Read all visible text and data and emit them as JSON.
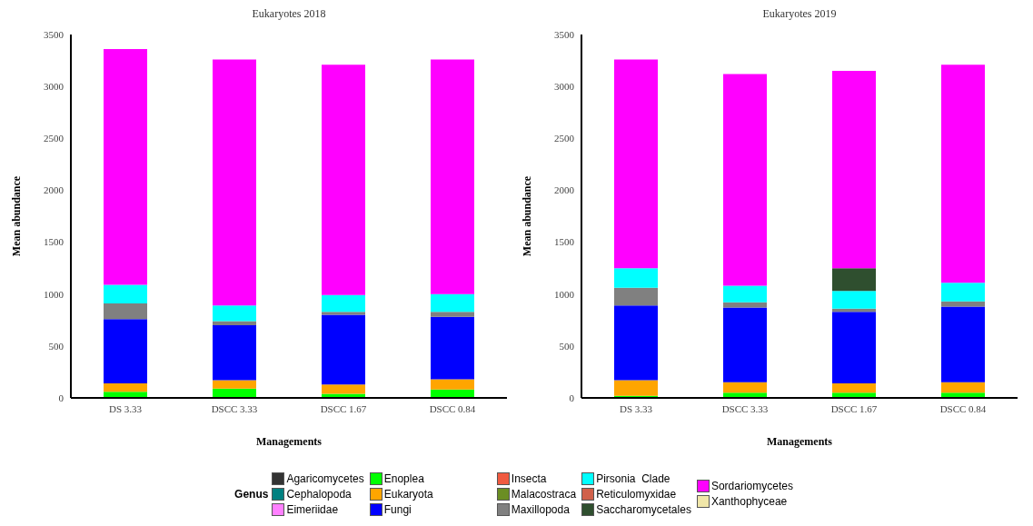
{
  "chart_data": [
    {
      "type": "bar",
      "title": "Eukaryotes 2018",
      "xlabel": "Managements",
      "ylabel": "Mean abundance",
      "categories": [
        "DS 3.33",
        "DSCC 3.33",
        "DSCC 1.67",
        "DSCC 0.84"
      ],
      "stacked": true,
      "ylim": [
        0,
        3500
      ],
      "yticks": [
        0,
        500,
        1000,
        1500,
        2000,
        2500,
        3000,
        3500
      ],
      "series": [
        {
          "color": "#333333",
          "values": [
            0,
            0,
            0,
            0
          ]
        },
        {
          "color": "#008080",
          "values": [
            0,
            0,
            0,
            0
          ]
        },
        {
          "color": "#ff80ff",
          "values": [
            0,
            0,
            0,
            0
          ]
        },
        {
          "color": "#00ff00",
          "values": [
            60,
            90,
            40,
            80
          ]
        },
        {
          "color": "#ffa500",
          "values": [
            80,
            80,
            90,
            100
          ]
        },
        {
          "color": "#0000ff",
          "values": [
            620,
            530,
            670,
            600
          ]
        },
        {
          "color": "#f05a40",
          "values": [
            0,
            0,
            0,
            0
          ]
        },
        {
          "color": "#6b8e23",
          "values": [
            0,
            0,
            0,
            0
          ]
        },
        {
          "color": "#808080",
          "values": [
            150,
            40,
            30,
            50
          ]
        },
        {
          "color": "#00ffff",
          "values": [
            180,
            150,
            160,
            170
          ]
        },
        {
          "color": "#d0604a",
          "values": [
            0,
            0,
            0,
            0
          ]
        },
        {
          "color": "#2f4f2f",
          "values": [
            0,
            0,
            0,
            0
          ]
        },
        {
          "color": "#ff00ff",
          "values": [
            2270,
            2370,
            2220,
            2260
          ]
        },
        {
          "color": "#f0e6a8",
          "values": [
            0,
            0,
            0,
            0
          ]
        }
      ]
    },
    {
      "type": "bar",
      "title": "Eukaryotes 2019",
      "xlabel": "Managements",
      "ylabel": "Mean abundance",
      "legend_title": "Genus",
      "categories": [
        "DS 3.33",
        "DSCC 3.33",
        "DSCC 1.67",
        "DSCC 0.84"
      ],
      "stacked": true,
      "ylim": [
        0,
        3500
      ],
      "yticks": [
        0,
        500,
        1000,
        1500,
        2000,
        2500,
        3000,
        3500
      ],
      "legend": "bottom",
      "series": [
        {
          "name": "Agaricomycetes",
          "color": "#333333",
          "values": [
            0,
            0,
            0,
            0
          ]
        },
        {
          "name": "Cephalopoda",
          "color": "#008080",
          "values": [
            0,
            0,
            0,
            0
          ]
        },
        {
          "name": "Eimeriidae",
          "color": "#ff80ff",
          "values": [
            0,
            0,
            0,
            0
          ]
        },
        {
          "name": "Enoplea",
          "color": "#00ff00",
          "values": [
            20,
            50,
            50,
            50
          ]
        },
        {
          "name": "Eukaryota",
          "color": "#ffa500",
          "values": [
            150,
            100,
            90,
            100
          ]
        },
        {
          "name": "Fungi",
          "color": "#0000ff",
          "values": [
            720,
            720,
            690,
            730
          ]
        },
        {
          "name": "Insecta",
          "color": "#f05a40",
          "values": [
            0,
            0,
            0,
            0
          ]
        },
        {
          "name": "Malacostraca",
          "color": "#6b8e23",
          "values": [
            0,
            0,
            0,
            0
          ]
        },
        {
          "name": "Maxillopoda",
          "color": "#808080",
          "values": [
            170,
            50,
            30,
            50
          ]
        },
        {
          "name": "Pirsonia  Clade",
          "color": "#00ffff",
          "values": [
            190,
            160,
            170,
            180
          ]
        },
        {
          "name": "Reticulomyxidae",
          "color": "#d0604a",
          "values": [
            0,
            0,
            0,
            0
          ]
        },
        {
          "name": "Saccharomycetales",
          "color": "#2f4f2f",
          "values": [
            0,
            0,
            220,
            0
          ]
        },
        {
          "name": "Sordariomycetes",
          "color": "#ff00ff",
          "values": [
            2010,
            2040,
            1900,
            2100
          ]
        },
        {
          "name": "Xanthophyceae",
          "color": "#f0e6a8",
          "values": [
            0,
            0,
            0,
            0
          ]
        }
      ]
    }
  ]
}
